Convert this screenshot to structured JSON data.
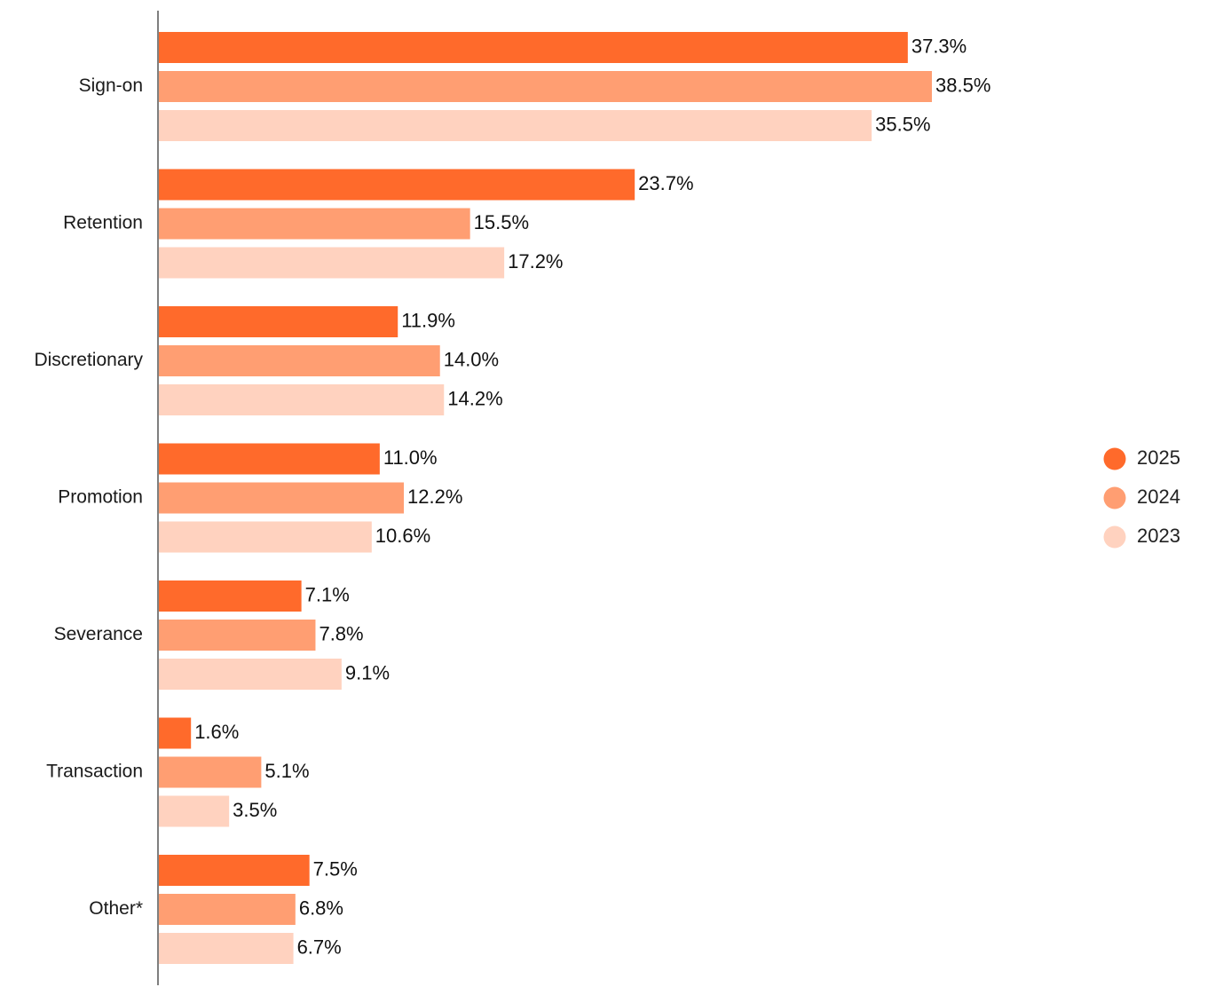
{
  "chart_data": {
    "type": "bar",
    "orientation": "horizontal",
    "categories": [
      "Sign-on",
      "Retention",
      "Discretionary",
      "Promotion",
      "Severance",
      "Transaction",
      "Other*"
    ],
    "series": [
      {
        "name": "2025",
        "color": "#FF6A2B",
        "values": [
          37.3,
          23.7,
          11.9,
          11.0,
          7.1,
          1.6,
          7.5
        ],
        "labels": [
          "37.3%",
          "23.7%",
          "11.9%",
          "11.0%",
          "7.1%",
          "1.6%",
          "7.5%"
        ]
      },
      {
        "name": "2024",
        "color": "#FF9E72",
        "values": [
          38.5,
          15.5,
          14.0,
          12.2,
          7.8,
          5.1,
          6.8
        ],
        "labels": [
          "38.5%",
          "15.5%",
          "14.0%",
          "12.2%",
          "7.8%",
          "5.1%",
          "6.8%"
        ]
      },
      {
        "name": "2023",
        "color": "#FFD2BF",
        "values": [
          35.5,
          17.2,
          14.2,
          10.6,
          9.1,
          3.5,
          6.7
        ],
        "labels": [
          "35.5%",
          "17.2%",
          "14.2%",
          "10.6%",
          "9.1%",
          "3.5%",
          "6.7%"
        ]
      }
    ],
    "title": "",
    "xlabel": "",
    "ylabel": "",
    "xlim": [
      0,
      38.5
    ],
    "grid": false,
    "legend_position": "right"
  }
}
